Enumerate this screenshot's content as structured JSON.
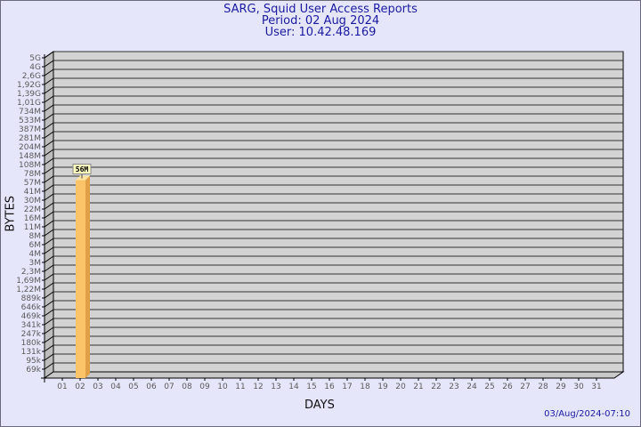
{
  "header": {
    "title": "SARG, Squid User Access Reports",
    "period": "Period: 02 Aug 2024",
    "user": "User: 10.42.48.169"
  },
  "footer_timestamp": "03/Aug/2024-07:10",
  "chart_data": {
    "type": "bar",
    "xlabel": "DAYS",
    "ylabel": "BYTES",
    "y_scale": "log",
    "y_tick_labels": [
      "5G",
      "4G",
      "2,6G",
      "1,92G",
      "1,39G",
      "1,01G",
      "734M",
      "533M",
      "387M",
      "281M",
      "204M",
      "148M",
      "108M",
      "78M",
      "57M",
      "41M",
      "30M",
      "22M",
      "16M",
      "11M",
      "8M",
      "6M",
      "4M",
      "3M",
      "2,3M",
      "1,69M",
      "1,22M",
      "889k",
      "646k",
      "469k",
      "341k",
      "247k",
      "180k",
      "131k",
      "95k",
      "69k"
    ],
    "categories": [
      "01",
      "02",
      "03",
      "04",
      "05",
      "06",
      "07",
      "08",
      "09",
      "10",
      "11",
      "12",
      "13",
      "14",
      "15",
      "16",
      "17",
      "18",
      "19",
      "20",
      "21",
      "22",
      "23",
      "24",
      "25",
      "26",
      "27",
      "28",
      "29",
      "30",
      "31"
    ],
    "values": [
      null,
      "56M",
      null,
      null,
      null,
      null,
      null,
      null,
      null,
      null,
      null,
      null,
      null,
      null,
      null,
      null,
      null,
      null,
      null,
      null,
      null,
      null,
      null,
      null,
      null,
      null,
      null,
      null,
      null,
      null,
      null
    ],
    "data_labels": {
      "02": "56M"
    },
    "grid": true,
    "colors": {
      "bar": "#fcc468",
      "bar_side": "#e0a048",
      "bar_top": "#fde4a0",
      "wall": "#d3d3d3",
      "label_bg": "#ffffc0"
    }
  }
}
